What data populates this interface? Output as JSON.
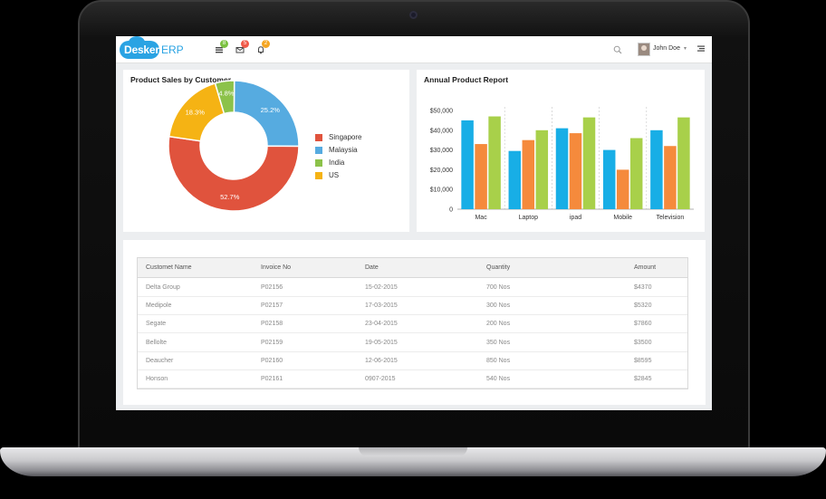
{
  "app": {
    "logo_main": "Deskera",
    "logo_suffix": "ERP"
  },
  "topbar": {
    "badges": [
      {
        "icon": "list-icon",
        "count": "8",
        "color": "#7cc242"
      },
      {
        "icon": "mail-icon",
        "count": "5",
        "color": "#f05a4a"
      },
      {
        "icon": "bell-icon",
        "count": "2",
        "color": "#f5a623"
      }
    ],
    "search_icon": "search-icon",
    "user_name": "John Doe",
    "menu_icon": "menu-icon"
  },
  "pie_card": {
    "title": "Product Sales by Customer"
  },
  "bar_card": {
    "title": "Annual Product Report"
  },
  "chart_data": [
    {
      "type": "pie",
      "title": "Product Sales by Customer",
      "donut": true,
      "slices": [
        {
          "label": "Singapore",
          "value": 52.7,
          "display": "52.7%",
          "color": "#e0533d"
        },
        {
          "label": "Malaysia",
          "value": 25.2,
          "display": "25.2%",
          "color": "#56abe0"
        },
        {
          "label": "India",
          "value": 4.8,
          "display": "4.8%",
          "color": "#8cc24a"
        },
        {
          "label": "US",
          "value": 18.3,
          "display": "18.3%",
          "color": "#f5b314"
        }
      ],
      "legend_position": "right"
    },
    {
      "type": "bar",
      "title": "Annual Product Report",
      "categories": [
        "Mac",
        "Laptop",
        "ipad",
        "Mobile",
        "Television"
      ],
      "series": [
        {
          "color": "#18aee6",
          "values": [
            45000,
            29500,
            41000,
            30000,
            40000
          ]
        },
        {
          "color": "#f58a3c",
          "values": [
            33000,
            35000,
            38500,
            20000,
            32000
          ]
        },
        {
          "color": "#a8d04a",
          "values": [
            47000,
            40000,
            46500,
            36000,
            46500
          ]
        }
      ],
      "ylim": [
        0,
        50000
      ],
      "yticks": [
        "0",
        "$10,000",
        "$20,000",
        "$30,000",
        "$40,000",
        "$50,000"
      ],
      "grid": "vertical dashed"
    }
  ],
  "table": {
    "columns": [
      "Customet Name",
      "Invoice No",
      "Date",
      "Quantity",
      "Amount"
    ],
    "rows": [
      [
        "Delta Group",
        "P02156",
        "15-02-2015",
        "700 Nos",
        "$4370"
      ],
      [
        "Medipole",
        "P02157",
        "17-03-2015",
        "300 Nos",
        "$5320"
      ],
      [
        "Segate",
        "P02158",
        "23-04-2015",
        "200 Nos",
        "$7860"
      ],
      [
        "Bellolte",
        "P02159",
        "19-05-2015",
        "350 Nos",
        "$3500"
      ],
      [
        "Deaucher",
        "P02160",
        "12-06-2015",
        "850 Nos",
        "$8595"
      ],
      [
        "Honson",
        "P02161",
        "0907-2015",
        "540 Nos",
        "$2845"
      ]
    ]
  }
}
